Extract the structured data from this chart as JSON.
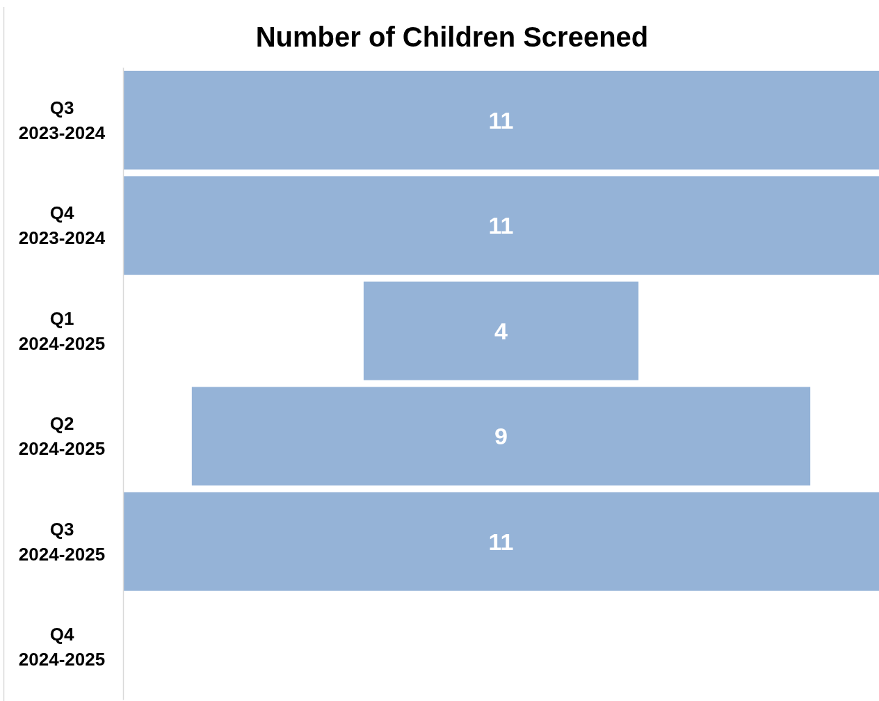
{
  "chart_data": {
    "type": "other",
    "title": "Number of Children Screened",
    "categories": [
      "Q3 2023-2024",
      "Q4 2023-2024",
      "Q1 2024-2025",
      "Q2 2024-2025",
      "Q3 2024-2025",
      "Q4 2024-2025"
    ],
    "values": [
      11,
      11,
      4,
      9,
      11,
      null
    ],
    "color": "#95b3d7",
    "data_labels": true
  }
}
